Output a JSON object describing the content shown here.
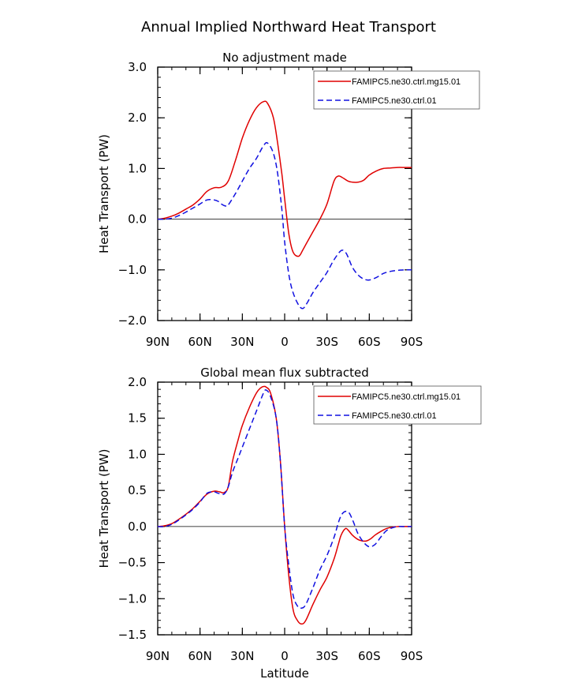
{
  "title": "Annual Implied Northward Heat Transport",
  "chart_data": [
    {
      "type": "line",
      "subtitle": "No adjustment made",
      "xlabel": "",
      "ylabel": "Heat Transport (PW)",
      "xlim": [
        90,
        -90
      ],
      "ylim": [
        -2.0,
        3.0
      ],
      "x_ticks": [
        90,
        60,
        30,
        0,
        -30,
        -60,
        -90
      ],
      "x_tick_labels": [
        "90N",
        "60N",
        "30N",
        "0",
        "30S",
        "60S",
        "90S"
      ],
      "y_ticks": [
        -2.0,
        -1.0,
        0.0,
        1.0,
        2.0,
        3.0
      ],
      "y_tick_labels": [
        "−2.0",
        "−1.0",
        "0.0",
        "1.0",
        "2.0",
        "3.0"
      ],
      "legend": "top-right",
      "series": [
        {
          "name": "FAMIPC5.ne30.ctrl.mg15.01",
          "color": "#e00000",
          "dash": "solid",
          "x": [
            90,
            85,
            80,
            75,
            70,
            65,
            60,
            55,
            50,
            45,
            40,
            35,
            30,
            25,
            20,
            15,
            12,
            8,
            5,
            2,
            0,
            -3,
            -6,
            -10,
            -13,
            -16,
            -20,
            -25,
            -30,
            -35,
            -38,
            -41,
            -45,
            -48,
            -52,
            -56,
            -60,
            -65,
            -70,
            -75,
            -80,
            -85,
            -90
          ],
          "y": [
            0.0,
            0.02,
            0.06,
            0.12,
            0.2,
            0.28,
            0.4,
            0.55,
            0.62,
            0.63,
            0.75,
            1.15,
            1.6,
            1.95,
            2.2,
            2.32,
            2.28,
            2.0,
            1.5,
            0.9,
            0.4,
            -0.3,
            -0.65,
            -0.73,
            -0.6,
            -0.45,
            -0.25,
            0.0,
            0.3,
            0.75,
            0.85,
            0.82,
            0.75,
            0.73,
            0.73,
            0.77,
            0.87,
            0.95,
            1.0,
            1.01,
            1.02,
            1.02,
            1.02
          ]
        },
        {
          "name": "FAMIPC5.ne30.ctrl.01",
          "color": "#1010e0",
          "dash": "dashed",
          "x": [
            90,
            85,
            80,
            75,
            70,
            65,
            60,
            55,
            50,
            47,
            45,
            42,
            40,
            35,
            30,
            25,
            20,
            15,
            12,
            8,
            5,
            2,
            0,
            -3,
            -6,
            -10,
            -13,
            -16,
            -20,
            -25,
            -30,
            -35,
            -40,
            -43,
            -45,
            -48,
            -52,
            -56,
            -60,
            -65,
            -70,
            -75,
            -80,
            -85,
            -90
          ],
          "y": [
            0.0,
            0.0,
            0.02,
            0.07,
            0.14,
            0.22,
            0.3,
            0.38,
            0.38,
            0.35,
            0.3,
            0.26,
            0.28,
            0.5,
            0.75,
            1.0,
            1.2,
            1.45,
            1.5,
            1.3,
            0.9,
            0.2,
            -0.45,
            -1.1,
            -1.45,
            -1.7,
            -1.76,
            -1.65,
            -1.45,
            -1.25,
            -1.05,
            -0.8,
            -0.62,
            -0.65,
            -0.75,
            -0.95,
            -1.1,
            -1.18,
            -1.2,
            -1.15,
            -1.07,
            -1.03,
            -1.01,
            -1.0,
            -1.0
          ]
        }
      ]
    },
    {
      "type": "line",
      "subtitle": "Global mean flux subtracted",
      "xlabel": "Latitude",
      "ylabel": "Heat Transport (PW)",
      "xlim": [
        90,
        -90
      ],
      "ylim": [
        -1.5,
        2.0
      ],
      "x_ticks": [
        90,
        60,
        30,
        0,
        -30,
        -60,
        -90
      ],
      "x_tick_labels": [
        "90N",
        "60N",
        "30N",
        "0",
        "30S",
        "60S",
        "90S"
      ],
      "y_ticks": [
        -1.5,
        -1.0,
        -0.5,
        0.0,
        0.5,
        1.0,
        1.5,
        2.0
      ],
      "y_tick_labels": [
        "−1.5",
        "−1.0",
        "−0.5",
        "0.0",
        "0.5",
        "1.0",
        "1.5",
        "2.0"
      ],
      "legend": "top-right",
      "series": [
        {
          "name": "FAMIPC5.ne30.ctrl.mg15.01",
          "color": "#e00000",
          "dash": "solid",
          "x": [
            90,
            85,
            80,
            75,
            70,
            65,
            60,
            55,
            50,
            46,
            43,
            40,
            37,
            33,
            30,
            25,
            20,
            17,
            15,
            13,
            10,
            6,
            3,
            0,
            -3,
            -6,
            -9,
            -12,
            -15,
            -20,
            -25,
            -30,
            -35,
            -38,
            -40,
            -43,
            -45,
            -48,
            -52,
            -55,
            -58,
            -61,
            -64,
            -68,
            -72,
            -76,
            -80,
            -85,
            -90
          ],
          "y": [
            0.0,
            0.01,
            0.04,
            0.1,
            0.17,
            0.25,
            0.35,
            0.45,
            0.49,
            0.48,
            0.47,
            0.55,
            0.9,
            1.2,
            1.4,
            1.65,
            1.85,
            1.92,
            1.94,
            1.93,
            1.85,
            1.5,
            0.9,
            0.0,
            -0.7,
            -1.15,
            -1.3,
            -1.35,
            -1.3,
            -1.08,
            -0.88,
            -0.7,
            -0.45,
            -0.25,
            -0.12,
            -0.03,
            -0.05,
            -0.12,
            -0.18,
            -0.2,
            -0.2,
            -0.17,
            -0.12,
            -0.07,
            -0.03,
            -0.01,
            0.0,
            0.0,
            0.0
          ]
        },
        {
          "name": "FAMIPC5.ne30.ctrl.01",
          "color": "#1010e0",
          "dash": "dashed",
          "x": [
            90,
            85,
            80,
            75,
            70,
            65,
            60,
            55,
            50,
            47,
            43,
            40,
            37,
            33,
            30,
            25,
            20,
            15,
            13,
            10,
            6,
            3,
            0,
            -3,
            -6,
            -9,
            -12,
            -15,
            -20,
            -25,
            -30,
            -35,
            -38,
            -40,
            -42,
            -44,
            -46,
            -49,
            -52,
            -56,
            -60,
            -64,
            -68,
            -72,
            -76,
            -80,
            -85,
            -90
          ],
          "y": [
            0.0,
            0.0,
            0.03,
            0.09,
            0.16,
            0.24,
            0.34,
            0.46,
            0.48,
            0.46,
            0.45,
            0.55,
            0.75,
            0.95,
            1.1,
            1.35,
            1.6,
            1.85,
            1.89,
            1.8,
            1.5,
            0.9,
            0.0,
            -0.55,
            -0.95,
            -1.1,
            -1.13,
            -1.08,
            -0.85,
            -0.6,
            -0.4,
            -0.15,
            0.05,
            0.15,
            0.2,
            0.21,
            0.18,
            0.05,
            -0.1,
            -0.22,
            -0.28,
            -0.25,
            -0.15,
            -0.06,
            -0.02,
            0.0,
            0.0,
            0.0
          ]
        }
      ]
    }
  ]
}
